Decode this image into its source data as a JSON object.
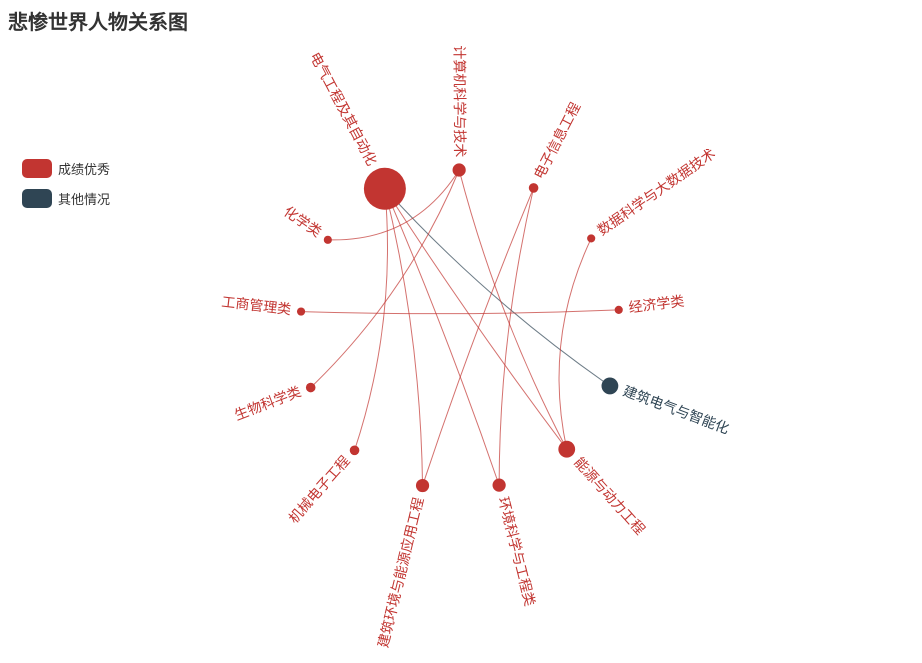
{
  "title": "悲惨世界人物关系图",
  "legend": [
    {
      "name": "成绩优秀",
      "color": "#c23531"
    },
    {
      "name": "其他情况",
      "color": "#2f4554"
    }
  ],
  "chart_data": {
    "type": "graph",
    "layout": "circular",
    "categories": [
      "成绩优秀",
      "其他情况"
    ],
    "nodes": [
      {
        "name": "电气工程及其自动化",
        "category": 0,
        "value": 5
      },
      {
        "name": "计算机科学与技术",
        "category": 0,
        "value": 1
      },
      {
        "name": "电子信息工程",
        "category": 0,
        "value": 0.5
      },
      {
        "name": "数据科学与大数据技术",
        "category": 0,
        "value": 0.3
      },
      {
        "name": "经济学类",
        "category": 0,
        "value": 0.3
      },
      {
        "name": "建筑电气与智能化",
        "category": 1,
        "value": 1.5
      },
      {
        "name": "能源与动力工程",
        "category": 0,
        "value": 1.5
      },
      {
        "name": "环境科学与工程类",
        "category": 0,
        "value": 1
      },
      {
        "name": "建筑环境与能源应用工程",
        "category": 0,
        "value": 1
      },
      {
        "name": "机械电子工程",
        "category": 0,
        "value": 0.5
      },
      {
        "name": "生物科学类",
        "category": 0,
        "value": 0.5
      },
      {
        "name": "工商管理类",
        "category": 0,
        "value": 0.3
      },
      {
        "name": "化学类",
        "category": 0,
        "value": 0.3
      }
    ],
    "links": [
      {
        "source": "电气工程及其自动化",
        "target": "建筑电气与智能化"
      },
      {
        "source": "电气工程及其自动化",
        "target": "能源与动力工程"
      },
      {
        "source": "电气工程及其自动化",
        "target": "环境科学与工程类"
      },
      {
        "source": "电气工程及其自动化",
        "target": "建筑环境与能源应用工程"
      },
      {
        "source": "电气工程及其自动化",
        "target": "机械电子工程"
      },
      {
        "source": "计算机科学与技术",
        "target": "化学类"
      },
      {
        "source": "计算机科学与技术",
        "target": "生物科学类"
      },
      {
        "source": "计算机科学与技术",
        "target": "能源与动力工程"
      },
      {
        "source": "电子信息工程",
        "target": "建筑环境与能源应用工程"
      },
      {
        "source": "电子信息工程",
        "target": "环境科学与工程类"
      },
      {
        "source": "数据科学与大数据技术",
        "target": "能源与动力工程"
      },
      {
        "source": "经济学类",
        "target": "工商管理类"
      }
    ]
  }
}
